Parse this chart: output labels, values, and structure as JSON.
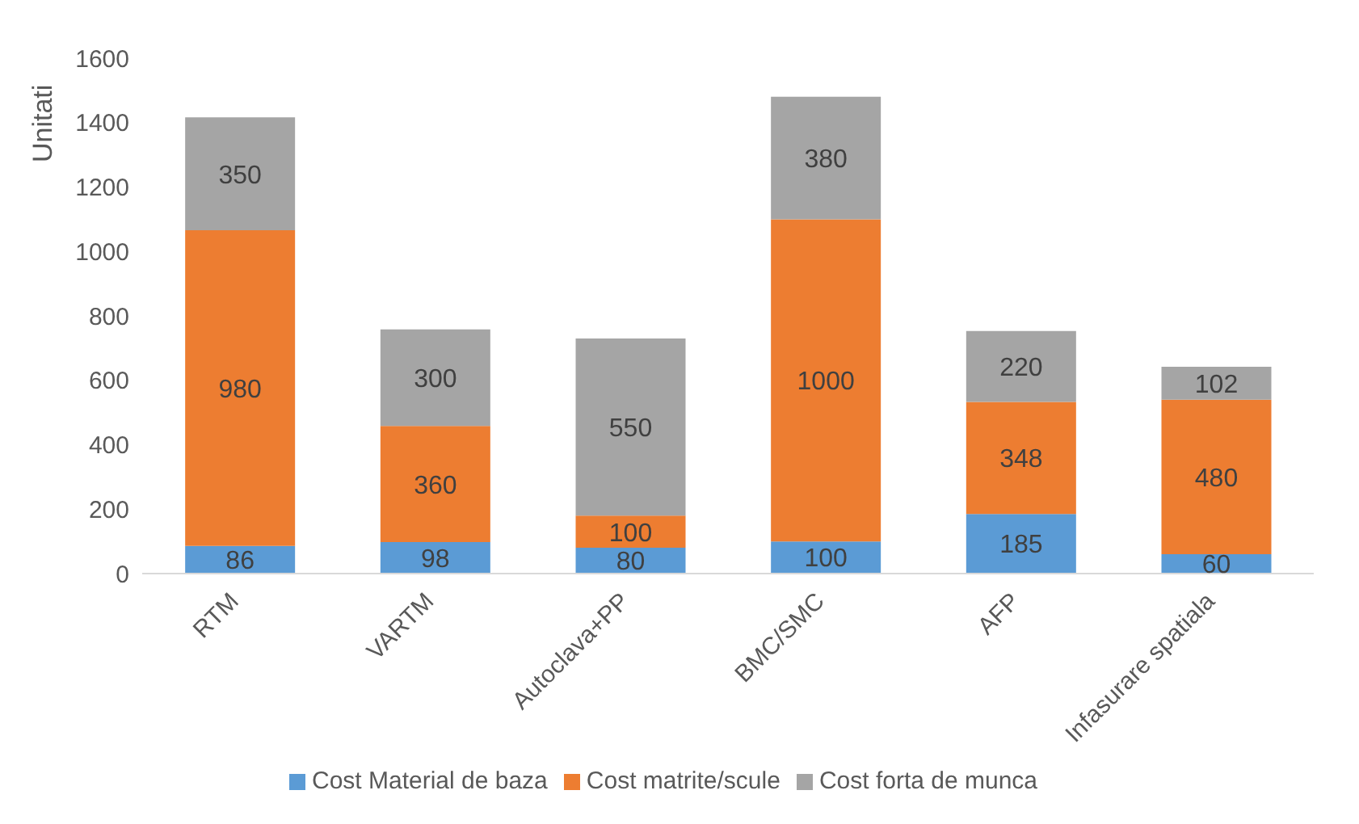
{
  "chart_data": {
    "type": "bar",
    "stacked": true,
    "ylabel": "Unitati",
    "categories": [
      "RTM",
      "VARTM",
      "Autoclava+PP",
      "BMC/SMC",
      "AFP",
      "Infasurare spatiala"
    ],
    "series": [
      {
        "name": "Cost Material de baza",
        "color": "#5b9bd5",
        "values": [
          86,
          98,
          80,
          100,
          185,
          60
        ]
      },
      {
        "name": "Cost matrite/scule",
        "color": "#ed7d31",
        "values": [
          980,
          360,
          100,
          1000,
          348,
          480
        ]
      },
      {
        "name": "Cost forta de munca",
        "color": "#a5a5a5",
        "values": [
          350,
          300,
          550,
          380,
          220,
          102
        ]
      }
    ],
    "ylim": [
      0,
      1600
    ],
    "yticks": [
      0,
      200,
      400,
      600,
      800,
      1000,
      1200,
      1400,
      1600
    ],
    "grid": false,
    "legend": "bottom",
    "data_labels": true
  }
}
